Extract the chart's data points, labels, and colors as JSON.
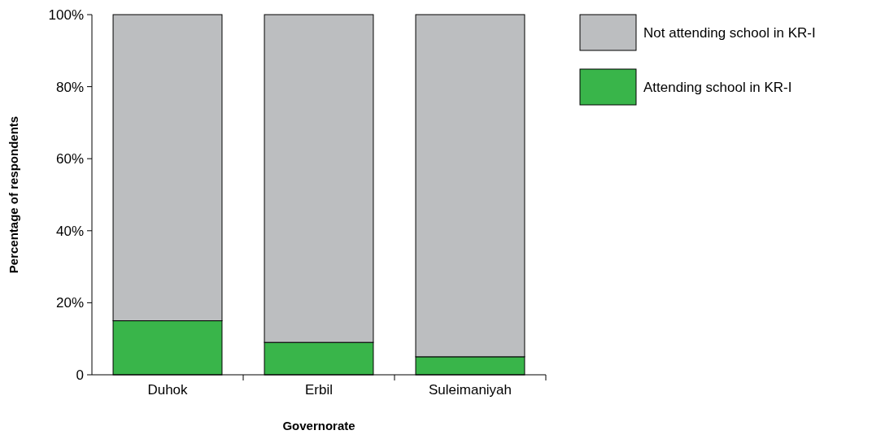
{
  "chart_data": {
    "type": "bar",
    "stacked": true,
    "xlabel": "Governorate",
    "ylabel": "Percentage of respondents",
    "categories": [
      "Duhok",
      "Erbil",
      "Suleimaniyah"
    ],
    "series": [
      {
        "name": "Attending school in KR-I",
        "color": "#39b54a",
        "values": [
          15,
          9,
          5
        ]
      },
      {
        "name": "Not attending school in KR-I",
        "color": "#bcbec0",
        "values": [
          85,
          91,
          95
        ]
      }
    ],
    "ylim": [
      0,
      100
    ],
    "yticks": [
      0,
      {
        "value": 20,
        "label": "20%"
      },
      {
        "value": 40,
        "label": "40%"
      },
      {
        "value": 60,
        "label": "60%"
      },
      {
        "value": 80,
        "label": "80%"
      },
      {
        "value": 100,
        "label": "100%"
      }
    ],
    "grid": false,
    "legend": "top right"
  }
}
